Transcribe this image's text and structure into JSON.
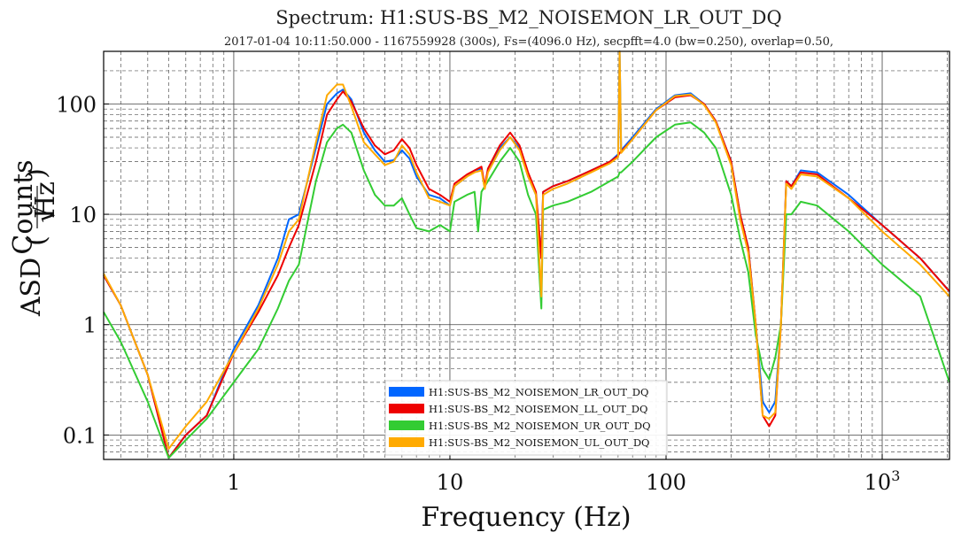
{
  "chart_data": {
    "type": "line",
    "title": "Spectrum: H1:SUS-BS_M2_NOISEMON_LR_OUT_DQ",
    "subtitle": "2017-01-04 10:11:50.000 - 1167559928 (300s), Fs=(4096.0 Hz), secpfft=4.0 (bw=0.250), overlap=0.50,",
    "xlabel": "Frequency (Hz)",
    "ylabel_prefix": "ASD",
    "ylabel_num": "Counts",
    "ylabel_den": "Hz",
    "x_scale": "log",
    "y_scale": "log",
    "xlim": [
      0.25,
      2048
    ],
    "ylim": [
      0.06,
      300
    ],
    "grid": true,
    "legend_position": "bottom-center",
    "x_ticks": [
      {
        "value": 1,
        "label": "1"
      },
      {
        "value": 10,
        "label": "10"
      },
      {
        "value": 100,
        "label": "100"
      },
      {
        "value": 1000,
        "label": "10",
        "exponent": "3"
      }
    ],
    "y_ticks": [
      {
        "value": 0.1,
        "label": "0.1"
      },
      {
        "value": 1,
        "label": "1"
      },
      {
        "value": 10,
        "label": "10"
      },
      {
        "value": 100,
        "label": "100"
      }
    ],
    "series": [
      {
        "name": "H1:SUS-BS_M2_NOISEMON_LR_OUT_DQ",
        "color": "#0066ff",
        "points": [
          [
            0.25,
            2.8
          ],
          [
            0.3,
            1.5
          ],
          [
            0.4,
            0.35
          ],
          [
            0.5,
            0.062
          ],
          [
            0.6,
            0.1
          ],
          [
            0.75,
            0.15
          ],
          [
            1,
            0.6
          ],
          [
            1.3,
            1.5
          ],
          [
            1.6,
            4
          ],
          [
            1.8,
            9
          ],
          [
            2.0,
            10
          ],
          [
            2.4,
            40
          ],
          [
            2.7,
            100
          ],
          [
            3.0,
            125
          ],
          [
            3.2,
            135
          ],
          [
            3.5,
            110
          ],
          [
            4.0,
            55
          ],
          [
            4.5,
            38
          ],
          [
            5.0,
            30
          ],
          [
            5.5,
            31
          ],
          [
            6.0,
            38
          ],
          [
            6.5,
            32
          ],
          [
            7.0,
            22
          ],
          [
            8.0,
            15
          ],
          [
            9.0,
            14
          ],
          [
            10.0,
            12
          ],
          [
            10.5,
            18
          ],
          [
            12,
            22
          ],
          [
            13,
            25
          ],
          [
            14,
            26
          ],
          [
            14.5,
            18
          ],
          [
            15,
            25
          ],
          [
            17,
            40
          ],
          [
            19,
            50
          ],
          [
            21,
            40
          ],
          [
            23,
            22
          ],
          [
            25,
            15
          ],
          [
            26.5,
            4
          ],
          [
            27,
            16
          ],
          [
            30,
            18
          ],
          [
            35,
            20
          ],
          [
            45,
            25
          ],
          [
            55,
            30
          ],
          [
            60,
            35
          ],
          [
            61,
            300
          ],
          [
            62,
            38
          ],
          [
            70,
            50
          ],
          [
            90,
            90
          ],
          [
            110,
            120
          ],
          [
            130,
            125
          ],
          [
            150,
            100
          ],
          [
            170,
            70
          ],
          [
            200,
            30
          ],
          [
            220,
            10
          ],
          [
            240,
            5
          ],
          [
            260,
            1
          ],
          [
            280,
            0.2
          ],
          [
            300,
            0.16
          ],
          [
            320,
            0.2
          ],
          [
            340,
            1
          ],
          [
            360,
            20
          ],
          [
            380,
            18
          ],
          [
            420,
            25
          ],
          [
            500,
            24
          ],
          [
            700,
            15
          ],
          [
            1000,
            8
          ],
          [
            1500,
            4
          ],
          [
            2048,
            2
          ]
        ]
      },
      {
        "name": "H1:SUS-BS_M2_NOISEMON_LL_OUT_DQ",
        "color": "#ee0000",
        "points": [
          [
            0.25,
            2.8
          ],
          [
            0.3,
            1.5
          ],
          [
            0.4,
            0.35
          ],
          [
            0.5,
            0.062
          ],
          [
            0.6,
            0.1
          ],
          [
            0.75,
            0.15
          ],
          [
            1,
            0.55
          ],
          [
            1.3,
            1.3
          ],
          [
            1.6,
            2.8
          ],
          [
            1.8,
            5
          ],
          [
            2.0,
            8
          ],
          [
            2.4,
            30
          ],
          [
            2.7,
            80
          ],
          [
            3.0,
            110
          ],
          [
            3.2,
            130
          ],
          [
            3.5,
            105
          ],
          [
            4.0,
            60
          ],
          [
            4.5,
            42
          ],
          [
            5.0,
            35
          ],
          [
            5.5,
            38
          ],
          [
            6.0,
            48
          ],
          [
            6.5,
            40
          ],
          [
            7.0,
            28
          ],
          [
            8.0,
            17
          ],
          [
            9.0,
            15
          ],
          [
            10.0,
            13
          ],
          [
            10.5,
            19
          ],
          [
            12,
            23
          ],
          [
            13,
            25
          ],
          [
            14,
            27
          ],
          [
            14.5,
            18
          ],
          [
            15,
            26
          ],
          [
            17,
            42
          ],
          [
            19,
            55
          ],
          [
            21,
            42
          ],
          [
            23,
            24
          ],
          [
            25,
            16
          ],
          [
            26.5,
            4
          ],
          [
            27,
            16
          ],
          [
            30,
            18
          ],
          [
            35,
            20
          ],
          [
            45,
            25
          ],
          [
            55,
            30
          ],
          [
            60,
            34
          ],
          [
            61,
            36
          ],
          [
            62,
            37
          ],
          [
            70,
            48
          ],
          [
            90,
            88
          ],
          [
            110,
            115
          ],
          [
            130,
            120
          ],
          [
            150,
            100
          ],
          [
            170,
            70
          ],
          [
            200,
            30
          ],
          [
            220,
            10
          ],
          [
            240,
            5
          ],
          [
            260,
            1
          ],
          [
            280,
            0.15
          ],
          [
            300,
            0.12
          ],
          [
            320,
            0.15
          ],
          [
            340,
            1
          ],
          [
            360,
            20
          ],
          [
            380,
            18
          ],
          [
            420,
            24
          ],
          [
            500,
            23
          ],
          [
            700,
            14
          ],
          [
            1000,
            8
          ],
          [
            1500,
            4
          ],
          [
            2048,
            2
          ]
        ]
      },
      {
        "name": "H1:SUS-BS_M2_NOISEMON_UR_OUT_DQ",
        "color": "#33cc33",
        "points": [
          [
            0.25,
            1.3
          ],
          [
            0.3,
            0.7
          ],
          [
            0.4,
            0.2
          ],
          [
            0.5,
            0.062
          ],
          [
            0.6,
            0.09
          ],
          [
            0.75,
            0.14
          ],
          [
            1,
            0.3
          ],
          [
            1.3,
            0.6
          ],
          [
            1.6,
            1.4
          ],
          [
            1.8,
            2.5
          ],
          [
            2.0,
            3.5
          ],
          [
            2.4,
            20
          ],
          [
            2.7,
            45
          ],
          [
            3.0,
            60
          ],
          [
            3.2,
            65
          ],
          [
            3.5,
            55
          ],
          [
            4.0,
            25
          ],
          [
            4.5,
            15
          ],
          [
            5.0,
            12
          ],
          [
            5.5,
            12
          ],
          [
            6.0,
            14
          ],
          [
            6.5,
            10
          ],
          [
            7.0,
            7.5
          ],
          [
            8.0,
            7
          ],
          [
            9.0,
            8
          ],
          [
            10.0,
            7
          ],
          [
            10.5,
            13
          ],
          [
            12,
            15
          ],
          [
            13,
            16
          ],
          [
            13.5,
            7
          ],
          [
            14,
            16
          ],
          [
            17,
            30
          ],
          [
            19,
            40
          ],
          [
            21,
            30
          ],
          [
            23,
            15
          ],
          [
            25,
            10
          ],
          [
            26.5,
            1.4
          ],
          [
            27,
            11
          ],
          [
            30,
            12
          ],
          [
            35,
            13
          ],
          [
            45,
            16
          ],
          [
            55,
            20
          ],
          [
            60,
            22
          ],
          [
            61,
            24
          ],
          [
            62,
            24
          ],
          [
            70,
            30
          ],
          [
            90,
            50
          ],
          [
            110,
            65
          ],
          [
            130,
            68
          ],
          [
            150,
            55
          ],
          [
            170,
            40
          ],
          [
            200,
            15
          ],
          [
            220,
            6
          ],
          [
            240,
            3
          ],
          [
            260,
            0.8
          ],
          [
            280,
            0.4
          ],
          [
            300,
            0.32
          ],
          [
            320,
            0.5
          ],
          [
            340,
            1
          ],
          [
            360,
            10
          ],
          [
            380,
            10
          ],
          [
            420,
            13
          ],
          [
            500,
            12
          ],
          [
            700,
            7
          ],
          [
            1000,
            3.5
          ],
          [
            1500,
            1.8
          ],
          [
            2048,
            0.3
          ]
        ]
      },
      {
        "name": "H1:SUS-BS_M2_NOISEMON_UL_OUT_DQ",
        "color": "#ffaa00",
        "points": [
          [
            0.25,
            2.9
          ],
          [
            0.3,
            1.5
          ],
          [
            0.4,
            0.35
          ],
          [
            0.5,
            0.075
          ],
          [
            0.6,
            0.12
          ],
          [
            0.75,
            0.2
          ],
          [
            1,
            0.55
          ],
          [
            1.3,
            1.4
          ],
          [
            1.6,
            3.5
          ],
          [
            1.8,
            7
          ],
          [
            2.0,
            9
          ],
          [
            2.4,
            45
          ],
          [
            2.7,
            120
          ],
          [
            3.0,
            150
          ],
          [
            3.2,
            150
          ],
          [
            3.5,
            95
          ],
          [
            4.0,
            45
          ],
          [
            4.5,
            35
          ],
          [
            5.0,
            28
          ],
          [
            5.5,
            30
          ],
          [
            6.0,
            42
          ],
          [
            6.5,
            35
          ],
          [
            7.0,
            24
          ],
          [
            8.0,
            14
          ],
          [
            9.0,
            13
          ],
          [
            10.0,
            12
          ],
          [
            10.5,
            18
          ],
          [
            12,
            22
          ],
          [
            13,
            24
          ],
          [
            14,
            25
          ],
          [
            14.5,
            17
          ],
          [
            15,
            24
          ],
          [
            17,
            38
          ],
          [
            19,
            50
          ],
          [
            21,
            38
          ],
          [
            23,
            22
          ],
          [
            25,
            15
          ],
          [
            26.5,
            1.8
          ],
          [
            27,
            15
          ],
          [
            30,
            17
          ],
          [
            35,
            19
          ],
          [
            45,
            24
          ],
          [
            55,
            29
          ],
          [
            60,
            33
          ],
          [
            61,
            300
          ],
          [
            62,
            36
          ],
          [
            70,
            48
          ],
          [
            90,
            88
          ],
          [
            110,
            118
          ],
          [
            130,
            122
          ],
          [
            150,
            98
          ],
          [
            170,
            68
          ],
          [
            200,
            28
          ],
          [
            220,
            9
          ],
          [
            240,
            4.5
          ],
          [
            260,
            1
          ],
          [
            280,
            0.15
          ],
          [
            300,
            0.14
          ],
          [
            320,
            0.16
          ],
          [
            340,
            1
          ],
          [
            360,
            19
          ],
          [
            380,
            17
          ],
          [
            420,
            23
          ],
          [
            500,
            22
          ],
          [
            700,
            14
          ],
          [
            1000,
            7
          ],
          [
            1500,
            3.5
          ],
          [
            2048,
            1.8
          ]
        ]
      }
    ]
  }
}
